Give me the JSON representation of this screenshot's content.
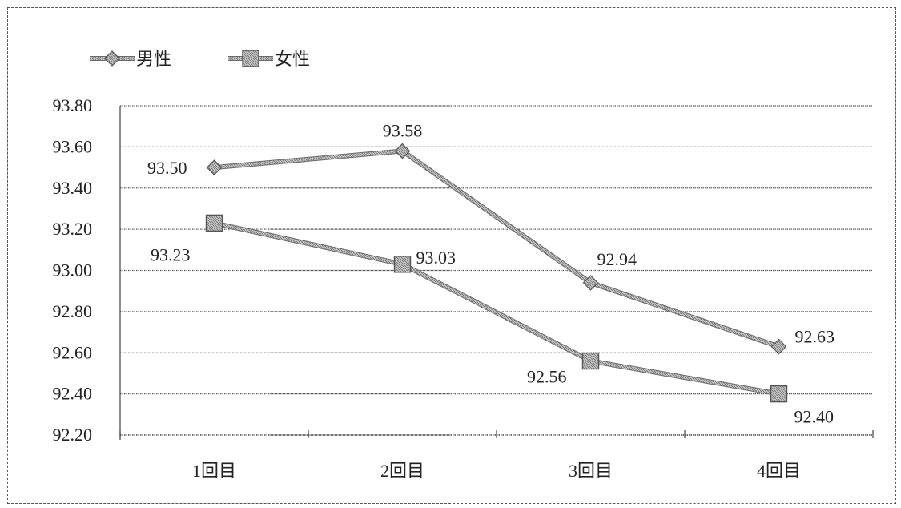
{
  "chart_data": {
    "type": "line",
    "title": "",
    "xlabel": "",
    "ylabel": "",
    "categories": [
      "1回目",
      "2回目",
      "3回目",
      "4回目"
    ],
    "ylim": [
      92.2,
      93.8
    ],
    "y_ticks": [
      "93.80",
      "93.60",
      "93.40",
      "93.20",
      "93.00",
      "92.80",
      "92.60",
      "92.40",
      "92.20"
    ],
    "grid": true,
    "legend_position": "top-left",
    "series": [
      {
        "name": "男性",
        "marker": "diamond",
        "color": "#8a8a8a",
        "values": [
          93.5,
          93.58,
          92.94,
          92.63
        ],
        "labels": [
          "93.50",
          "93.58",
          "92.94",
          "92.63"
        ]
      },
      {
        "name": "女性",
        "marker": "square",
        "color": "#707070",
        "values": [
          93.23,
          93.03,
          92.56,
          92.4
        ],
        "labels": [
          "93.23",
          "93.03",
          "92.56",
          "92.40"
        ]
      }
    ]
  }
}
